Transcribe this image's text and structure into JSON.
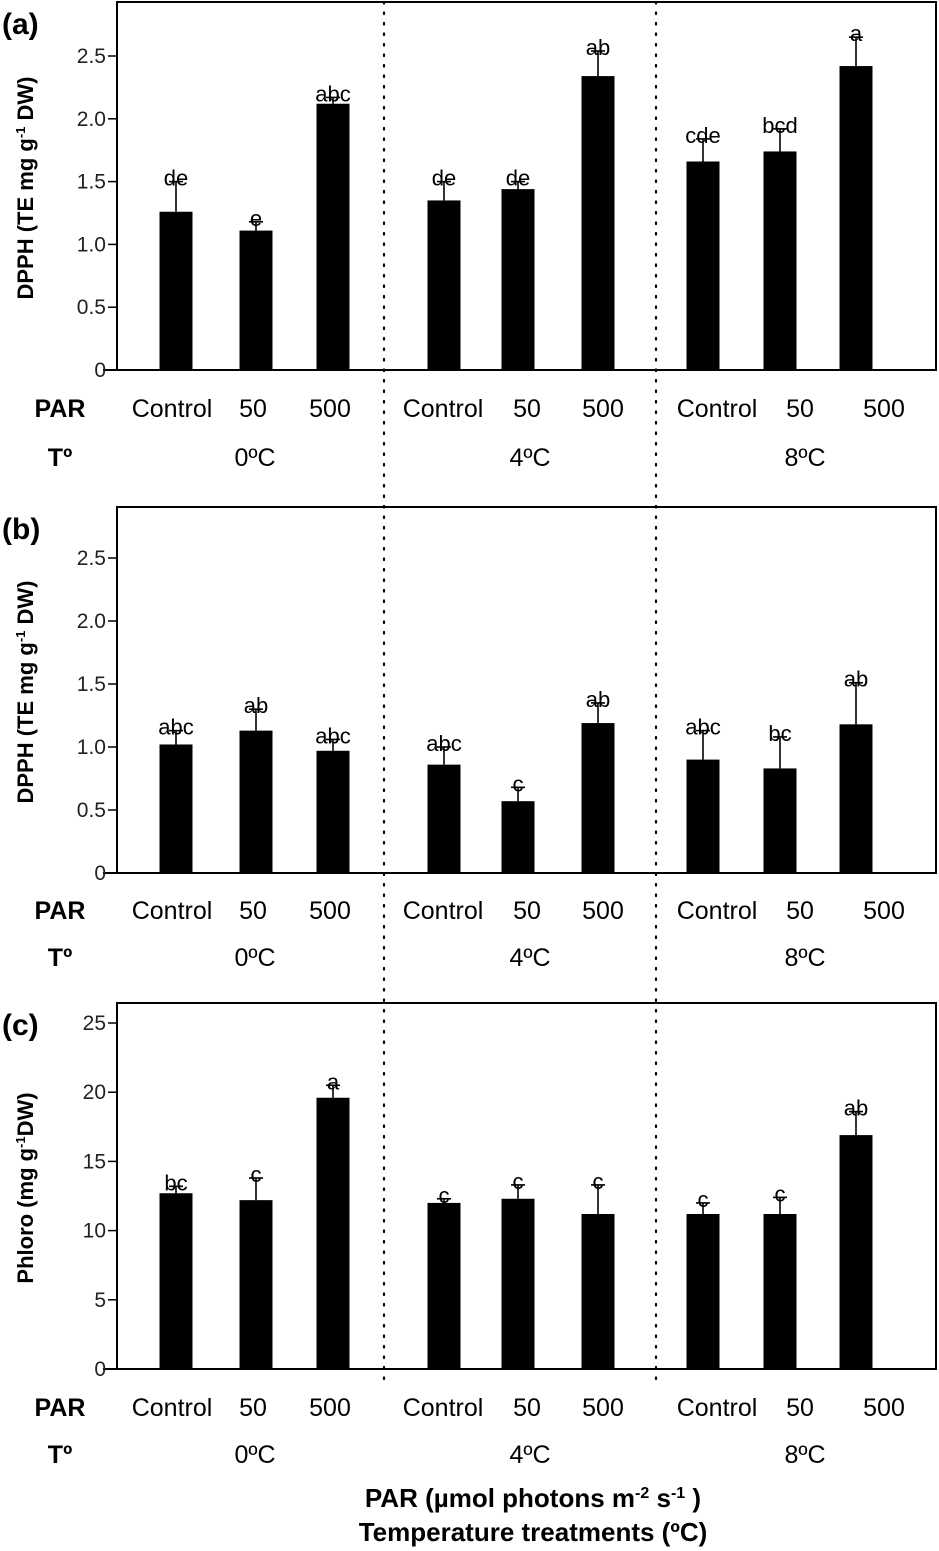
{
  "chart_data": [
    {
      "type": "bar",
      "panel": "(a)",
      "ylabel_main": "DPPH  (TE mg g",
      "ylabel_sup": "-1",
      "ylabel_tail": " DW)",
      "ylim": [
        0,
        2.9
      ],
      "yticks": [
        0,
        0.5,
        1.0,
        1.5,
        2.0,
        2.5
      ],
      "ytick_labels": [
        "0",
        "0.5",
        "1.0",
        "1.5",
        "2.0",
        "2.5"
      ],
      "groups": [
        "0ºC",
        "4ºC",
        "8ºC"
      ],
      "categories": [
        "Control",
        "50",
        "500",
        "Control",
        "50",
        "500",
        "Control",
        "50",
        "500"
      ],
      "values": [
        1.26,
        1.11,
        2.12,
        1.35,
        1.44,
        2.34,
        1.66,
        1.74,
        2.42
      ],
      "error_upper": [
        1.5,
        1.18,
        2.17,
        1.5,
        1.5,
        2.54,
        1.84,
        1.92,
        2.65
      ],
      "significance": [
        "de",
        "e",
        "abc",
        "de",
        "de",
        "ab",
        "cde",
        "bcd",
        "a"
      ]
    },
    {
      "type": "bar",
      "panel": "(b)",
      "ylabel_main": "DPPH  (TE mg g",
      "ylabel_sup": "-1",
      "ylabel_tail": " DW)",
      "ylim": [
        0,
        2.9
      ],
      "yticks": [
        0,
        0.5,
        1.0,
        1.5,
        2.0,
        2.5
      ],
      "ytick_labels": [
        "0",
        "0.5",
        "1.0",
        "1.5",
        "2.0",
        "2.5"
      ],
      "groups": [
        "0ºC",
        "4ºC",
        "8ºC"
      ],
      "categories": [
        "Control",
        "50",
        "500",
        "Control",
        "50",
        "500",
        "Control",
        "50",
        "500"
      ],
      "values": [
        1.02,
        1.13,
        0.97,
        0.86,
        0.57,
        1.19,
        0.9,
        0.83,
        1.18
      ],
      "error_upper": [
        1.13,
        1.3,
        1.06,
        1.0,
        0.68,
        1.35,
        1.13,
        1.08,
        1.51
      ],
      "significance": [
        "abc",
        "ab",
        "abc",
        "abc",
        "c",
        "ab",
        "abc",
        "bc",
        "ab"
      ]
    },
    {
      "type": "bar",
      "panel": "(c)",
      "ylabel_main": "Phloro  (mg g",
      "ylabel_sup": "-1",
      "ylabel_tail": "DW)",
      "ylim": [
        0,
        26.5
      ],
      "yticks": [
        0,
        5,
        10,
        15,
        20,
        25
      ],
      "ytick_labels": [
        "0",
        "5",
        "10",
        "15",
        "20",
        "25"
      ],
      "groups": [
        "0ºC",
        "4ºC",
        "8ºC"
      ],
      "categories": [
        "Control",
        "50",
        "500",
        "Control",
        "50",
        "500",
        "Control",
        "50",
        "500"
      ],
      "values": [
        12.7,
        12.2,
        19.6,
        12.0,
        12.3,
        11.2,
        11.2,
        11.2,
        16.9
      ],
      "error_upper": [
        13.2,
        13.8,
        20.5,
        12.3,
        13.3,
        13.3,
        12.0,
        12.4,
        18.6
      ],
      "significance": [
        "bc",
        "c",
        "a",
        "c",
        "c",
        "c",
        "c",
        "c",
        "ab"
      ]
    }
  ],
  "row_headers": {
    "par": "PAR",
    "temp": "Tº"
  },
  "xtitle": {
    "line1_main": "PAR (µmol photons m",
    "line1_sup1": "-2",
    "line1_mid": " s",
    "line1_sup2": "-1",
    "line1_tail": " )",
    "line2": "Temperature treatments (ºC)"
  },
  "colors": {
    "bar": "#000000",
    "frame": "#000000",
    "background": "#ffffff"
  }
}
